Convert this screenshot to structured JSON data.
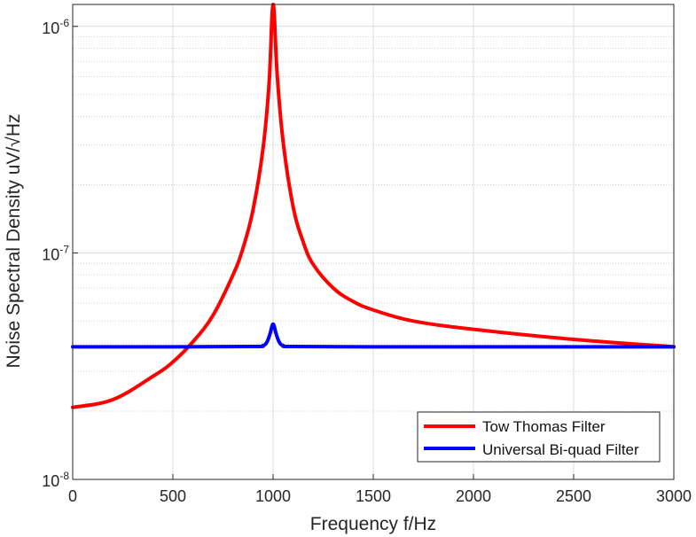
{
  "chart_data": {
    "type": "line",
    "xlabel": "Frequency f/Hz",
    "ylabel": "Noise Spectral Density uV/√Hz",
    "xlim": [
      0,
      3000
    ],
    "ylim": [
      1e-08,
      1.25e-06
    ],
    "yscale": "log",
    "grid": true,
    "minor_grid": true,
    "legend_position": "bottom-right",
    "xticks": [
      "0",
      "500",
      "1000",
      "1500",
      "2000",
      "2500",
      "3000"
    ],
    "yticks": [
      {
        "base": "10",
        "exp": "-8"
      },
      {
        "base": "10",
        "exp": "-7"
      },
      {
        "base": "10",
        "exp": "-6"
      }
    ],
    "series": [
      {
        "name": "Tow Thomas Filter",
        "color": "#ff0000",
        "x": [
          0,
          200,
          400,
          500,
          600,
          700,
          800,
          850,
          900,
          950,
          980,
          1000,
          1020,
          1050,
          1100,
          1150,
          1200,
          1300,
          1400,
          1500,
          1700,
          2000,
          2500,
          3000
        ],
        "y": [
          2.08e-08,
          2.25e-08,
          2.85e-08,
          3.3e-08,
          4.05e-08,
          5.3e-08,
          8e-08,
          1.05e-07,
          1.55e-07,
          2.9e-07,
          5.6e-07,
          1.25e-06,
          6.2e-07,
          3.1e-07,
          1.6e-07,
          1.12e-07,
          8.9e-08,
          7e-08,
          6.1e-08,
          5.6e-08,
          5e-08,
          4.6e-08,
          4.15e-08,
          3.85e-08
        ]
      },
      {
        "name": "Universal Bi-quad Filter",
        "color": "#0000ff",
        "x": [
          0,
          500,
          900,
          950,
          970,
          985,
          1000,
          1015,
          1030,
          1050,
          1100,
          1500,
          2000,
          2500,
          3000
        ],
        "y": [
          3.85e-08,
          3.85e-08,
          3.86e-08,
          3.9e-08,
          4.05e-08,
          4.4e-08,
          4.85e-08,
          4.4e-08,
          4.05e-08,
          3.9e-08,
          3.86e-08,
          3.85e-08,
          3.85e-08,
          3.85e-08,
          3.85e-08
        ]
      }
    ]
  }
}
